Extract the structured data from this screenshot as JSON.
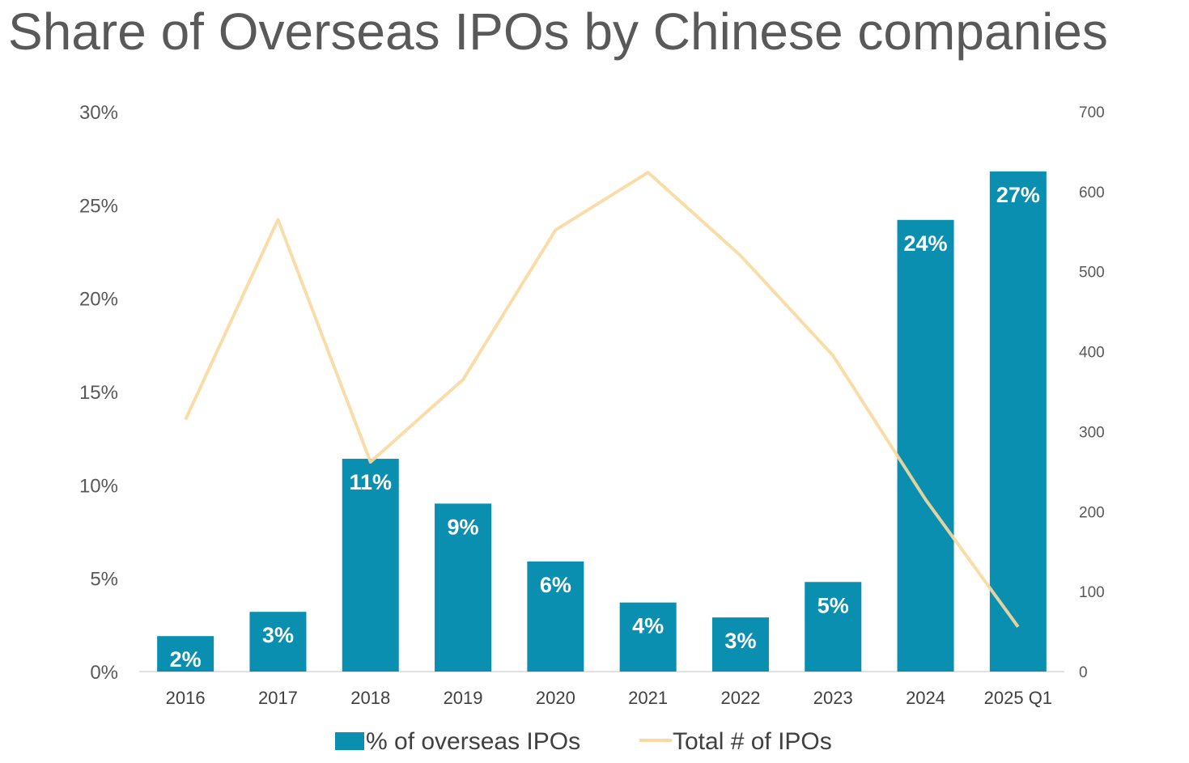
{
  "chart_data": {
    "type": "bar",
    "title": "Share of Overseas IPOs by Chinese companies",
    "categories": [
      "2016",
      "2017",
      "2018",
      "2019",
      "2020",
      "2021",
      "2022",
      "2023",
      "2024",
      "2025 Q1"
    ],
    "series": [
      {
        "name": "% of overseas IPOs",
        "type": "bar",
        "axis": "left",
        "color": "#0A8FB0",
        "values": [
          1.9,
          3.2,
          11.4,
          9.0,
          5.9,
          3.7,
          2.9,
          4.8,
          24.2,
          26.8
        ],
        "data_labels": [
          "2%",
          "3%",
          "11%",
          "9%",
          "6%",
          "4%",
          "3%",
          "5%",
          "24%",
          "27%"
        ]
      },
      {
        "name": "Total # of IPOs",
        "type": "line",
        "axis": "right",
        "color": "#F8D9A0",
        "values": [
          315,
          565,
          262,
          365,
          552,
          624,
          520,
          395,
          215,
          56
        ]
      }
    ],
    "y_left": {
      "ylim": [
        0,
        30
      ],
      "ticks": [
        0,
        5,
        10,
        15,
        20,
        25,
        30
      ],
      "tick_labels": [
        "0%",
        "5%",
        "10%",
        "15%",
        "20%",
        "25%",
        "30%"
      ]
    },
    "y_right": {
      "ylim": [
        0,
        700
      ],
      "ticks": [
        0,
        100,
        200,
        300,
        400,
        500,
        600,
        700
      ],
      "tick_labels": [
        "0",
        "100",
        "200",
        "300",
        "400",
        "500",
        "600",
        "700"
      ]
    },
    "grid": false,
    "legend_position": "bottom"
  }
}
